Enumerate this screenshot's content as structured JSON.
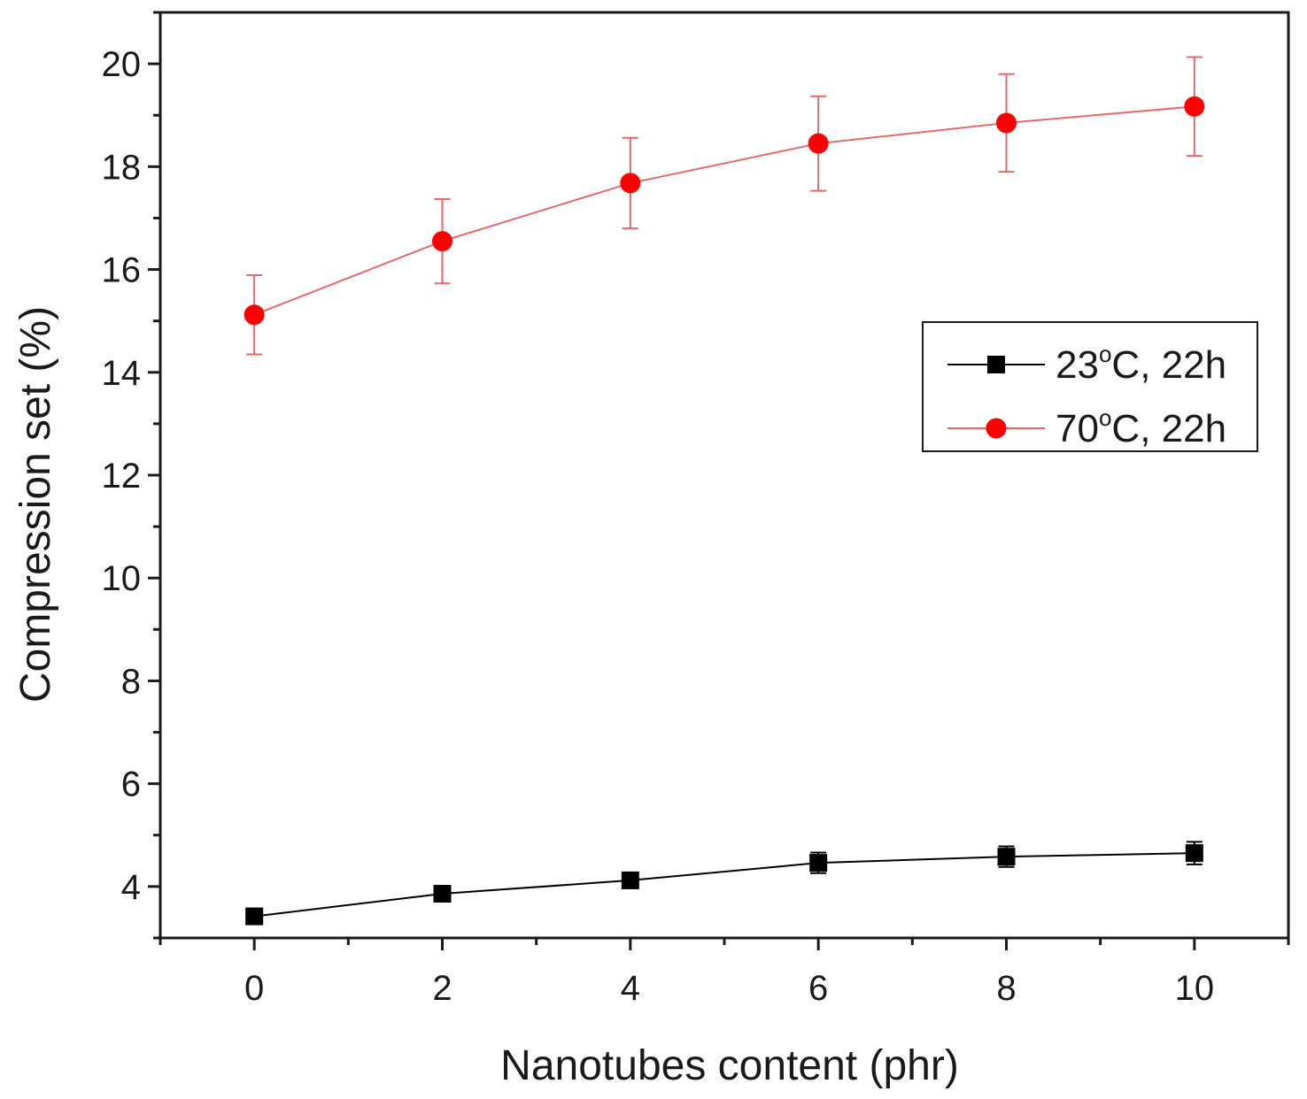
{
  "chart_data": {
    "type": "line",
    "title": "",
    "xlabel": "Nanotubes content (phr)",
    "ylabel": "Compression set (%)",
    "xlim": [
      -1,
      11
    ],
    "ylim": [
      3,
      21
    ],
    "x_ticks": [
      0,
      2,
      4,
      6,
      8,
      10
    ],
    "y_ticks": [
      4,
      6,
      8,
      10,
      12,
      14,
      16,
      18,
      20
    ],
    "grid": false,
    "legend_position": "right-middle",
    "x": [
      0,
      2,
      4,
      6,
      8,
      10
    ],
    "series": [
      {
        "name": "23°C, 22h",
        "name_parts": {
          "main": "23",
          "sup": "o",
          "rest": "C, 22h"
        },
        "color": "#000000",
        "marker": "square",
        "values": [
          3.42,
          3.86,
          4.12,
          4.46,
          4.58,
          4.65
        ],
        "errors": [
          0.08,
          0.1,
          0.15,
          0.2,
          0.2,
          0.22
        ]
      },
      {
        "name": "70°C, 22h",
        "name_parts": {
          "main": "70",
          "sup": "o",
          "rest": "C, 22h"
        },
        "color": "#ff0000",
        "line_color": "#e06a6a",
        "marker": "circle",
        "values": [
          15.12,
          16.55,
          17.68,
          18.45,
          18.85,
          19.17
        ],
        "errors": [
          0.77,
          0.82,
          0.88,
          0.92,
          0.95,
          0.96
        ]
      }
    ]
  }
}
